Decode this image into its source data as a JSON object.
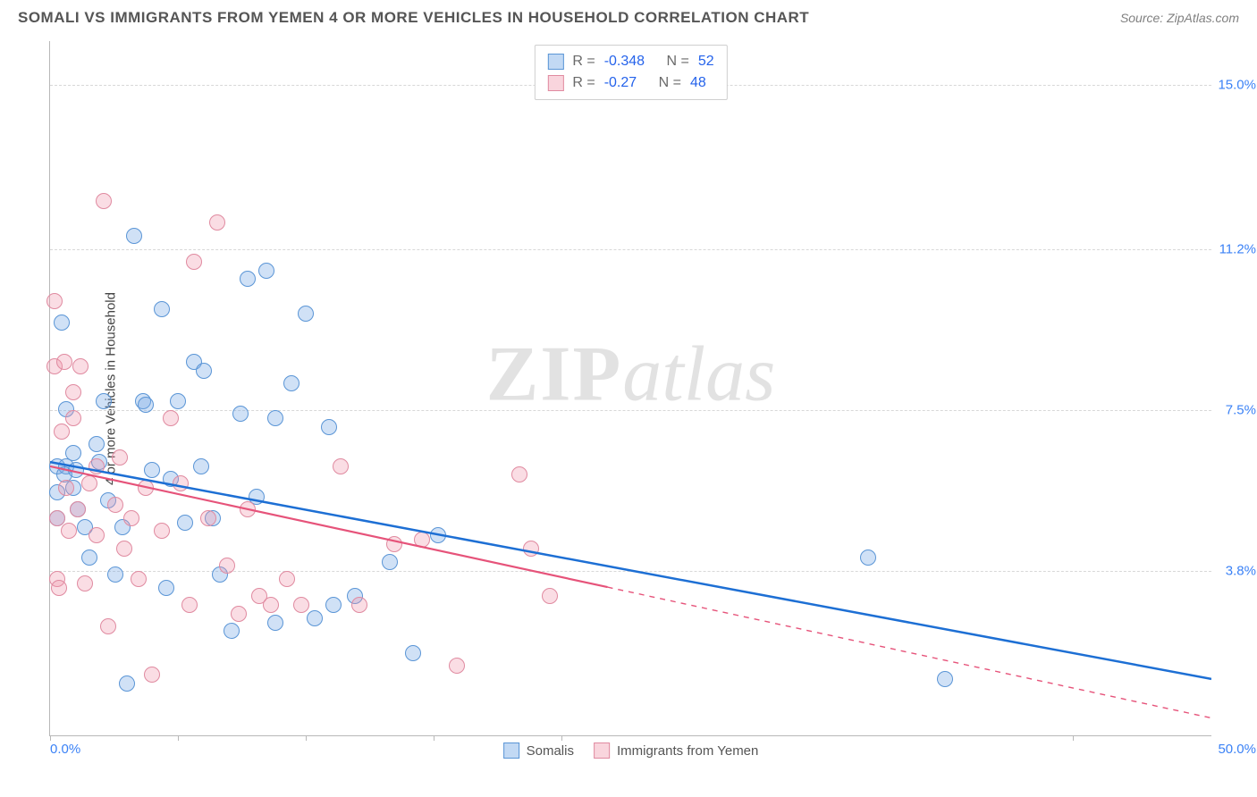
{
  "header": {
    "title": "SOMALI VS IMMIGRANTS FROM YEMEN 4 OR MORE VEHICLES IN HOUSEHOLD CORRELATION CHART",
    "source_prefix": "Source: ",
    "source_name": "ZipAtlas.com"
  },
  "watermark": {
    "a": "ZIP",
    "b": "atlas"
  },
  "chart": {
    "type": "scatter",
    "xlim": [
      0,
      50
    ],
    "ylim": [
      0,
      16
    ],
    "x_tick_positions": [
      0,
      5.5,
      11,
      16.5,
      22,
      44
    ],
    "x_label_min": "0.0%",
    "x_label_max": "50.0%",
    "y_gridlines": [
      {
        "value": 3.8,
        "label": "3.8%"
      },
      {
        "value": 7.5,
        "label": "7.5%"
      },
      {
        "value": 11.2,
        "label": "11.2%"
      },
      {
        "value": 15.0,
        "label": "15.0%"
      }
    ],
    "y_axis_label": "4 or more Vehicles in Household",
    "background_color": "#ffffff",
    "grid_color": "#d8d8d8",
    "axis_color": "#b8b8b8",
    "marker_radius": 9,
    "series": [
      {
        "key": "somalis",
        "label": "Somalis",
        "color_fill": "rgba(120,170,230,0.35)",
        "color_stroke": "#5a95d6",
        "trend_color": "#1d6fd4",
        "trend_width": 2.5,
        "r": -0.348,
        "n": 52,
        "trend": {
          "x1": 0,
          "y1": 6.3,
          "x2": 50,
          "y2": 1.3,
          "solid_until_x": 50
        },
        "points": [
          [
            0.3,
            6.2
          ],
          [
            0.3,
            5.0
          ],
          [
            0.3,
            5.6
          ],
          [
            0.5,
            9.5
          ],
          [
            0.7,
            7.5
          ],
          [
            0.7,
            6.2
          ],
          [
            1.0,
            6.5
          ],
          [
            1.0,
            5.7
          ],
          [
            1.2,
            5.2
          ],
          [
            1.5,
            4.8
          ],
          [
            1.7,
            4.1
          ],
          [
            2.0,
            6.7
          ],
          [
            2.3,
            7.7
          ],
          [
            2.5,
            5.4
          ],
          [
            2.8,
            3.7
          ],
          [
            3.1,
            4.8
          ],
          [
            3.3,
            1.2
          ],
          [
            3.6,
            11.5
          ],
          [
            4.0,
            7.7
          ],
          [
            4.4,
            6.1
          ],
          [
            4.8,
            9.8
          ],
          [
            5.0,
            3.4
          ],
          [
            5.5,
            7.7
          ],
          [
            5.8,
            4.9
          ],
          [
            6.2,
            8.6
          ],
          [
            6.6,
            8.4
          ],
          [
            7.0,
            5.0
          ],
          [
            7.3,
            3.7
          ],
          [
            7.8,
            2.4
          ],
          [
            8.2,
            7.4
          ],
          [
            8.5,
            10.5
          ],
          [
            8.9,
            5.5
          ],
          [
            9.3,
            10.7
          ],
          [
            9.7,
            7.3
          ],
          [
            9.7,
            2.6
          ],
          [
            10.4,
            8.1
          ],
          [
            11.0,
            9.7
          ],
          [
            11.4,
            2.7
          ],
          [
            12.0,
            7.1
          ],
          [
            12.2,
            3.0
          ],
          [
            13.1,
            3.2
          ],
          [
            14.6,
            4.0
          ],
          [
            15.6,
            1.9
          ],
          [
            16.7,
            4.6
          ],
          [
            35.2,
            4.1
          ],
          [
            38.5,
            1.3
          ],
          [
            0.6,
            6.0
          ],
          [
            1.1,
            6.1
          ],
          [
            2.1,
            6.3
          ],
          [
            4.1,
            7.6
          ],
          [
            5.2,
            5.9
          ],
          [
            6.5,
            6.2
          ]
        ]
      },
      {
        "key": "yemen",
        "label": "Immigrants from Yemen",
        "color_fill": "rgba(240,150,170,0.32)",
        "color_stroke": "#e08aa0",
        "trend_color": "#e6537a",
        "trend_width": 2.2,
        "r": -0.27,
        "n": 48,
        "trend": {
          "x1": 0,
          "y1": 6.2,
          "x2": 50,
          "y2": 0.4,
          "solid_until_x": 24
        },
        "points": [
          [
            0.2,
            10.0
          ],
          [
            0.2,
            8.5
          ],
          [
            0.3,
            5.0
          ],
          [
            0.3,
            3.6
          ],
          [
            0.4,
            3.4
          ],
          [
            0.5,
            7.0
          ],
          [
            0.6,
            8.6
          ],
          [
            0.7,
            5.7
          ],
          [
            0.8,
            4.7
          ],
          [
            1.0,
            7.9
          ],
          [
            1.0,
            7.3
          ],
          [
            1.2,
            5.2
          ],
          [
            1.3,
            8.5
          ],
          [
            1.5,
            3.5
          ],
          [
            1.7,
            5.8
          ],
          [
            2.0,
            4.6
          ],
          [
            2.0,
            6.2
          ],
          [
            2.3,
            12.3
          ],
          [
            2.5,
            2.5
          ],
          [
            2.8,
            5.3
          ],
          [
            3.0,
            6.4
          ],
          [
            3.2,
            4.3
          ],
          [
            3.5,
            5.0
          ],
          [
            3.8,
            3.6
          ],
          [
            4.1,
            5.7
          ],
          [
            4.4,
            1.4
          ],
          [
            4.8,
            4.7
          ],
          [
            5.2,
            7.3
          ],
          [
            5.6,
            5.8
          ],
          [
            6.0,
            3.0
          ],
          [
            6.2,
            10.9
          ],
          [
            6.8,
            5.0
          ],
          [
            7.2,
            11.8
          ],
          [
            7.6,
            3.9
          ],
          [
            8.1,
            2.8
          ],
          [
            8.5,
            5.2
          ],
          [
            9.0,
            3.2
          ],
          [
            9.5,
            3.0
          ],
          [
            10.2,
            3.6
          ],
          [
            10.8,
            3.0
          ],
          [
            12.5,
            6.2
          ],
          [
            13.3,
            3.0
          ],
          [
            14.8,
            4.4
          ],
          [
            16.0,
            4.5
          ],
          [
            17.5,
            1.6
          ],
          [
            20.2,
            6.0
          ],
          [
            21.5,
            3.2
          ],
          [
            20.7,
            4.3
          ]
        ]
      }
    ],
    "legend_top": {
      "r_label": "R =",
      "n_label": "N ="
    },
    "title_fontsize": 17,
    "label_fontsize": 15,
    "tick_fontsize": 15,
    "tick_color": "#3b82f6"
  }
}
